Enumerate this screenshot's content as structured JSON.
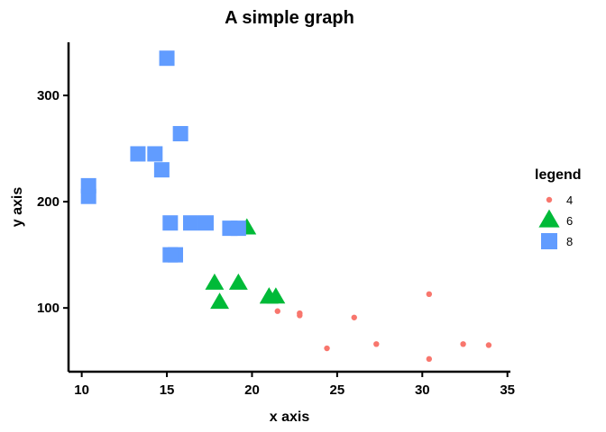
{
  "chart_data": {
    "type": "scatter",
    "title": "A simple graph",
    "xlabel": "x axis",
    "ylabel": "y axis",
    "xlim": [
      9.225,
      35.175
    ],
    "ylim": [
      40,
      350
    ],
    "x_ticks": [
      10,
      15,
      20,
      25,
      30,
      35
    ],
    "y_ticks": [
      100,
      200,
      300
    ],
    "grid": false,
    "legend": {
      "title": "legend",
      "placement": "right",
      "entries": [
        "4",
        "6",
        "8"
      ]
    },
    "series": [
      {
        "name": "4",
        "shape": "circle",
        "color": "#F8766D",
        "points": [
          [
            22.8,
            93
          ],
          [
            24.4,
            62
          ],
          [
            22.8,
            95
          ],
          [
            32.4,
            66
          ],
          [
            30.4,
            52
          ],
          [
            33.9,
            65
          ],
          [
            21.5,
            97
          ],
          [
            27.3,
            66
          ],
          [
            26.0,
            91
          ],
          [
            30.4,
            113
          ],
          [
            21.4,
            109
          ]
        ]
      },
      {
        "name": "6",
        "shape": "triangle",
        "color": "#00BA38",
        "points": [
          [
            21.0,
            110
          ],
          [
            21.0,
            110
          ],
          [
            21.4,
            110
          ],
          [
            18.1,
            105
          ],
          [
            19.2,
            123
          ],
          [
            17.8,
            123
          ],
          [
            19.7,
            175
          ]
        ]
      },
      {
        "name": "8",
        "shape": "square",
        "color": "#619CFF",
        "points": [
          [
            18.7,
            175
          ],
          [
            14.3,
            245
          ],
          [
            16.4,
            180
          ],
          [
            17.3,
            180
          ],
          [
            15.2,
            180
          ],
          [
            10.4,
            205
          ],
          [
            10.4,
            215
          ],
          [
            14.7,
            230
          ],
          [
            15.5,
            150
          ],
          [
            15.2,
            150
          ],
          [
            13.3,
            245
          ],
          [
            19.2,
            175
          ],
          [
            15.8,
            264
          ],
          [
            15.0,
            335
          ]
        ]
      }
    ]
  }
}
